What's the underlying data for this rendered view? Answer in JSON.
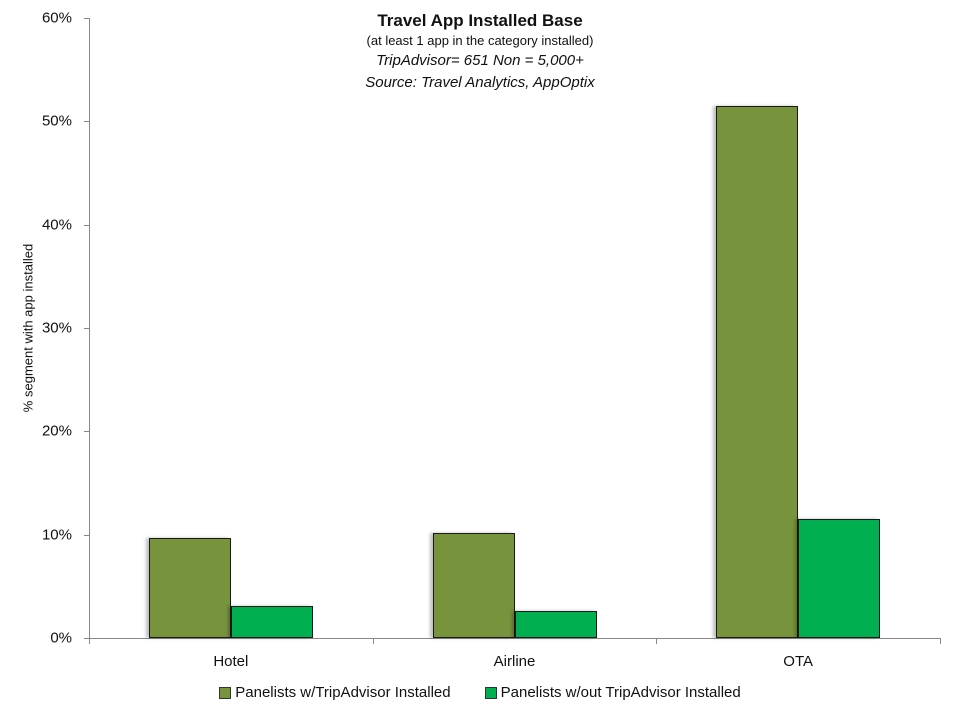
{
  "chart_data": {
    "type": "bar",
    "title": "Travel App Installed Base",
    "subtitle_lines": [
      "(at least 1 app in the category installed)",
      "TripAdvisor= 651 Non = 5,000+",
      "Source: Travel Analytics, AppOptix"
    ],
    "xlabel": "",
    "ylabel": "% segment with app installed",
    "categories": [
      "Hotel",
      "Airline",
      "OTA"
    ],
    "series": [
      {
        "name": "Panelists w/TripAdvisor Installed",
        "color": "#77933C",
        "values": [
          9.7,
          10.2,
          51.5
        ]
      },
      {
        "name": "Panelists w/out TripAdvisor Installed",
        "color": "#00B050",
        "values": [
          3.1,
          2.6,
          11.5
        ]
      }
    ],
    "ylim": [
      0,
      60
    ],
    "yticks": [
      "0%",
      "10%",
      "20%",
      "30%",
      "40%",
      "50%",
      "60%"
    ],
    "grid": false,
    "legend_position": "bottom"
  }
}
